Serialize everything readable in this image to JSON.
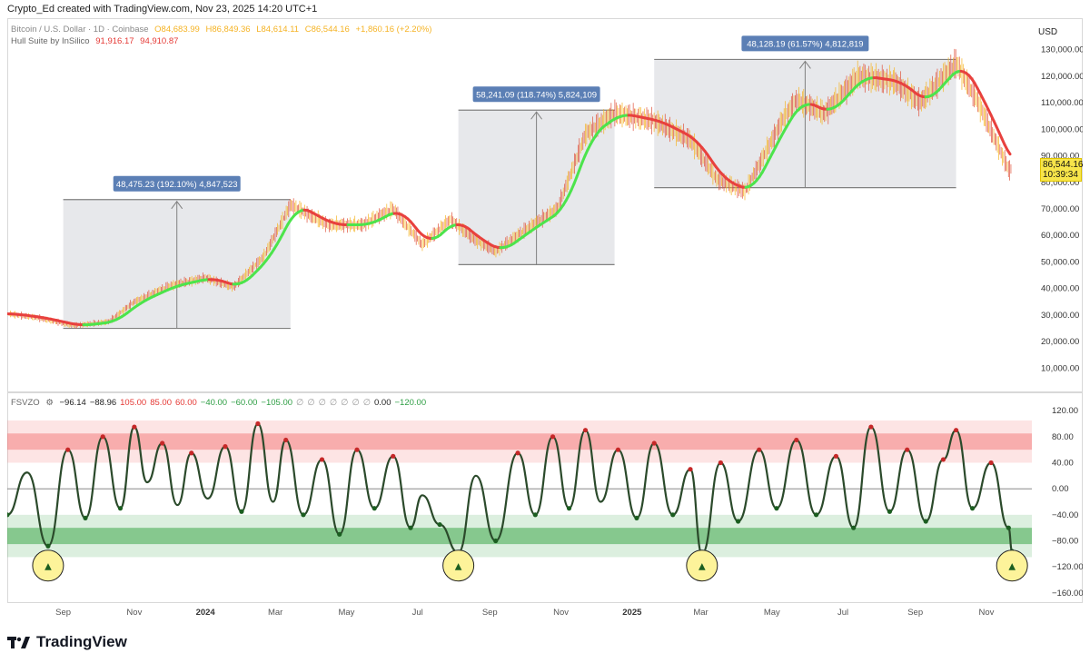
{
  "header": {
    "text": "Crypto_Ed created with TradingView.com, Nov 23, 2025 14:20 UTC+1"
  },
  "main_legend": {
    "symbol": "Bitcoin / U.S. Dollar · 1D · Coinbase",
    "open": "O84,683.99",
    "high": "H86,849.36",
    "low": "L84,614.11",
    "close": "C86,544.16",
    "change": "+1,860.16 (+2.20%)",
    "indicator_name": "Hull Suite by InSilico",
    "indicator_v1": "91,916.17",
    "indicator_v2": "94,910.87"
  },
  "currency": "USD",
  "price_tag": {
    "price": "86,544.16",
    "countdown": "10:39:34"
  },
  "colors": {
    "up_candle": "#f5b324",
    "down_candle": "#e0533c",
    "hull_up": "#4ce44c",
    "hull_down": "#e8413e",
    "box_fill": "#e3e4e8",
    "box_line": "#808080",
    "label_bg": "#5b7fb5",
    "overbought": "#f26b6b",
    "oversold": "#3fa84b"
  },
  "lower_legend": {
    "name": "FSVZO",
    "values": [
      "−96.14",
      "−88.96",
      "105.00",
      "85.00",
      "60.00",
      "−40.00",
      "−60.00",
      "−105.00",
      "∅",
      "∅",
      "∅",
      "∅",
      "∅",
      "∅",
      "∅",
      "0.00",
      "−120.00"
    ],
    "value_colors": [
      "#222",
      "#222",
      "#e53935",
      "#e53935",
      "#e53935",
      "#2e9e44",
      "#2e9e44",
      "#2e9e44",
      "#999",
      "#999",
      "#999",
      "#999",
      "#999",
      "#999",
      "#999",
      "#222",
      "#2e9e44"
    ]
  },
  "footer": {
    "brand": "TradingView"
  },
  "chart_data": [
    {
      "type": "line",
      "series": [
        {
          "x": [
            "2023-07-15",
            "2023-08-10",
            "2023-09-10",
            "2023-10-10",
            "2023-11-01",
            "2023-12-01",
            "2024-01-01",
            "2024-01-25",
            "2024-02-20",
            "2024-03-14",
            "2024-04-15",
            "2024-05-15",
            "2024-06-10",
            "2024-07-05",
            "2024-07-29",
            "2024-08-20",
            "2024-09-06",
            "2024-10-01",
            "2024-10-29",
            "2024-11-22",
            "2024-12-17",
            "2025-01-20",
            "2025-02-20",
            "2025-03-15",
            "2025-04-08",
            "2025-05-10",
            "2025-05-22",
            "2025-06-15",
            "2025-07-14",
            "2025-08-14",
            "2025-09-05",
            "2025-10-06",
            "2025-10-25",
            "2025-11-21",
            "2025-11-23"
          ],
          "values": [
            30500,
            29000,
            26000,
            27500,
            35000,
            41000,
            44000,
            40500,
            52000,
            71500,
            64000,
            64000,
            70000,
            56500,
            66000,
            58000,
            54000,
            62000,
            70000,
            98000,
            106000,
            103000,
            96000,
            81000,
            76500,
            103500,
            111000,
            106000,
            120000,
            118000,
            110000,
            125000,
            110000,
            84000,
            86544
          ]
        }
      ],
      "ylim": [
        5000,
        135000
      ],
      "yticks": [
        "130,000.00",
        "120,000.00",
        "110,000.00",
        "100,000.00",
        "90,000.00",
        "80,000.00",
        "70,000.00",
        "60,000.00",
        "50,000.00",
        "40,000.00",
        "30,000.00",
        "20,000.00",
        "10,000.00"
      ],
      "ytick_values": [
        130000,
        120000,
        110000,
        100000,
        90000,
        80000,
        70000,
        60000,
        50000,
        40000,
        30000,
        20000,
        10000
      ],
      "measurements": [
        {
          "label": "48,475.23 (192.10%) 4,847,523",
          "from": 25000,
          "to": 73500,
          "start": "2023-09-01",
          "end": "2024-03-14"
        },
        {
          "label": "58,241.09 (118.74%) 5,824,109",
          "from": 49000,
          "to": 107200,
          "start": "2024-08-05",
          "end": "2024-12-17"
        },
        {
          "label": "48,128.19 (61.57%) 4,812,819",
          "from": 78000,
          "to": 126300,
          "start": "2025-01-20",
          "end": "2025-10-06"
        }
      ]
    },
    {
      "type": "line",
      "series": [
        {
          "x": [
            "2023-07-15",
            "2023-08-01",
            "2023-08-19",
            "2023-09-05",
            "2023-09-20",
            "2023-10-05",
            "2023-10-20",
            "2023-11-01",
            "2023-11-12",
            "2023-11-25",
            "2023-12-08",
            "2023-12-20",
            "2024-01-03",
            "2024-01-18",
            "2024-02-01",
            "2024-02-15",
            "2024-02-28",
            "2024-03-10",
            "2024-03-25",
            "2024-04-10",
            "2024-04-25",
            "2024-05-10",
            "2024-05-25",
            "2024-06-10",
            "2024-06-25",
            "2024-07-05",
            "2024-07-20",
            "2024-08-05",
            "2024-08-20",
            "2024-09-06",
            "2024-09-25",
            "2024-10-10",
            "2024-10-25",
            "2024-11-08",
            "2024-11-22",
            "2024-12-05",
            "2024-12-20",
            "2025-01-05",
            "2025-01-20",
            "2025-02-05",
            "2025-02-20",
            "2025-03-02",
            "2025-03-18",
            "2025-04-02",
            "2025-04-20",
            "2025-05-05",
            "2025-05-22",
            "2025-06-08",
            "2025-06-25",
            "2025-07-10",
            "2025-07-25",
            "2025-08-10",
            "2025-08-25",
            "2025-09-10",
            "2025-09-25",
            "2025-10-06",
            "2025-10-20",
            "2025-11-05",
            "2025-11-20",
            "2025-11-23"
          ],
          "values": [
            -40,
            25,
            -88,
            60,
            -45,
            80,
            -30,
            95,
            10,
            70,
            -25,
            55,
            -15,
            65,
            -35,
            100,
            -20,
            75,
            -40,
            45,
            -70,
            60,
            -30,
            50,
            -60,
            -10,
            -55,
            -98,
            20,
            -80,
            55,
            -40,
            80,
            -30,
            90,
            -20,
            60,
            -45,
            70,
            -40,
            30,
            -100,
            40,
            -50,
            60,
            -30,
            75,
            -40,
            50,
            -60,
            95,
            -35,
            60,
            -50,
            45,
            90,
            -30,
            40,
            -60,
            -96
          ]
        }
      ],
      "ylim": [
        -170,
        130
      ],
      "yticks": [
        "120.00",
        "80.00",
        "40.00",
        "0.00",
        "−40.00",
        "−80.00",
        "−120.00",
        "−160.00"
      ],
      "ytick_values": [
        120,
        80,
        40,
        0,
        -40,
        -80,
        -120,
        -160
      ],
      "bands": {
        "overbought_outer": [
          105,
          40
        ],
        "overbought_inner": [
          85,
          60
        ],
        "oversold_inner": [
          -60,
          -85
        ],
        "oversold_outer": [
          -40,
          -105
        ]
      },
      "xticks": [
        {
          "label": "Sep",
          "date": "2023-09-01"
        },
        {
          "label": "Nov",
          "date": "2023-11-01"
        },
        {
          "label": "2024",
          "date": "2024-01-01",
          "year": true
        },
        {
          "label": "Mar",
          "date": "2024-03-01"
        },
        {
          "label": "May",
          "date": "2024-05-01"
        },
        {
          "label": "Jul",
          "date": "2024-07-01"
        },
        {
          "label": "Sep",
          "date": "2024-09-01"
        },
        {
          "label": "Nov",
          "date": "2024-11-01"
        },
        {
          "label": "2025",
          "date": "2025-01-01",
          "year": true
        },
        {
          "label": "Mar",
          "date": "2025-03-01"
        },
        {
          "label": "May",
          "date": "2025-05-01"
        },
        {
          "label": "Jul",
          "date": "2025-07-01"
        },
        {
          "label": "Sep",
          "date": "2025-09-01"
        },
        {
          "label": "Nov",
          "date": "2025-11-01"
        }
      ],
      "highlight_circles": [
        "2023-08-19",
        "2024-08-05",
        "2025-03-02",
        "2025-11-23"
      ]
    }
  ]
}
